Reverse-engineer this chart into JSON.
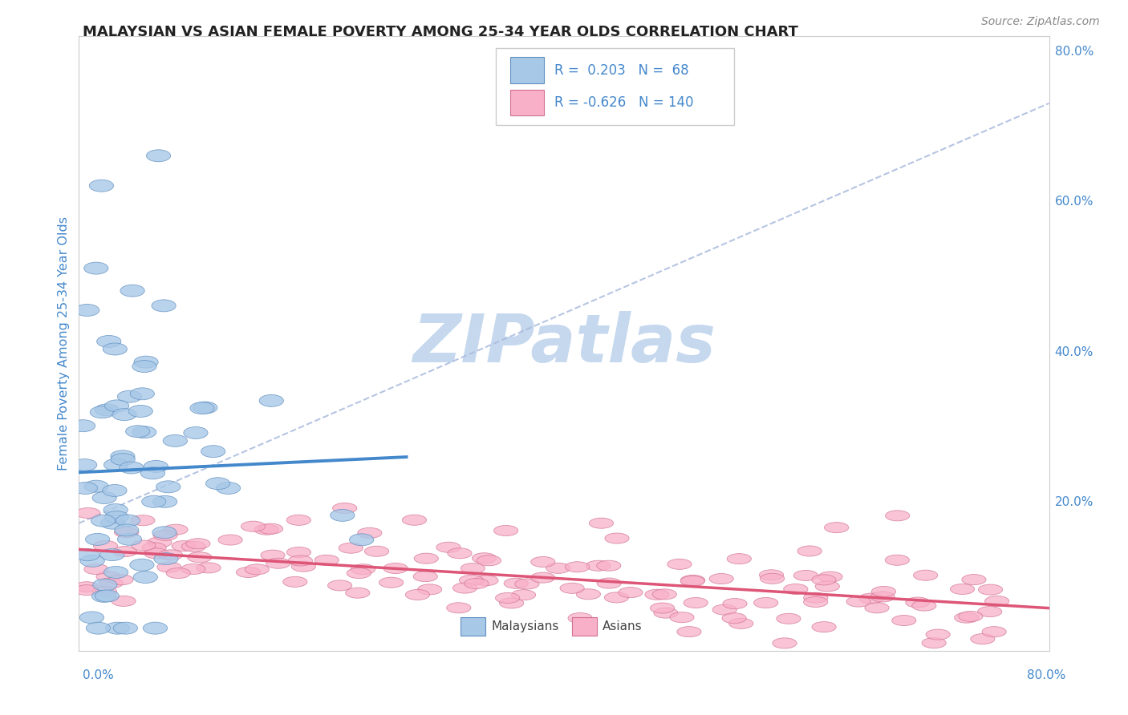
{
  "title": "MALAYSIAN VS ASIAN FEMALE POVERTY AMONG 25-34 YEAR OLDS CORRELATION CHART",
  "source": "Source: ZipAtlas.com",
  "ylabel": "Female Poverty Among 25-34 Year Olds",
  "xlim": [
    0,
    0.8
  ],
  "ylim": [
    0.0,
    0.82
  ],
  "malaysian_R": 0.203,
  "malaysian_N": 68,
  "asian_R": -0.626,
  "asian_N": 140,
  "malaysian_color": "#a8c8e8",
  "malaysian_edge_color": "#6090c0",
  "asian_color": "#f8b0c8",
  "asian_edge_color": "#d07090",
  "malaysian_line_color": "#4488cc",
  "asian_line_color": "#dd5577",
  "dash_line_color": "#aabbdd",
  "watermark_color": "#c5d8ee",
  "background_color": "#ffffff",
  "grid_color": "#e8e8e8",
  "title_color": "#222222",
  "axis_label_color": "#4488cc",
  "right_tick_color": "#4488cc",
  "source_color": "#888888",
  "legend_text_color": "#4488cc",
  "legend_border_color": "#cccccc",
  "bottom_legend_text_color": "#444444"
}
